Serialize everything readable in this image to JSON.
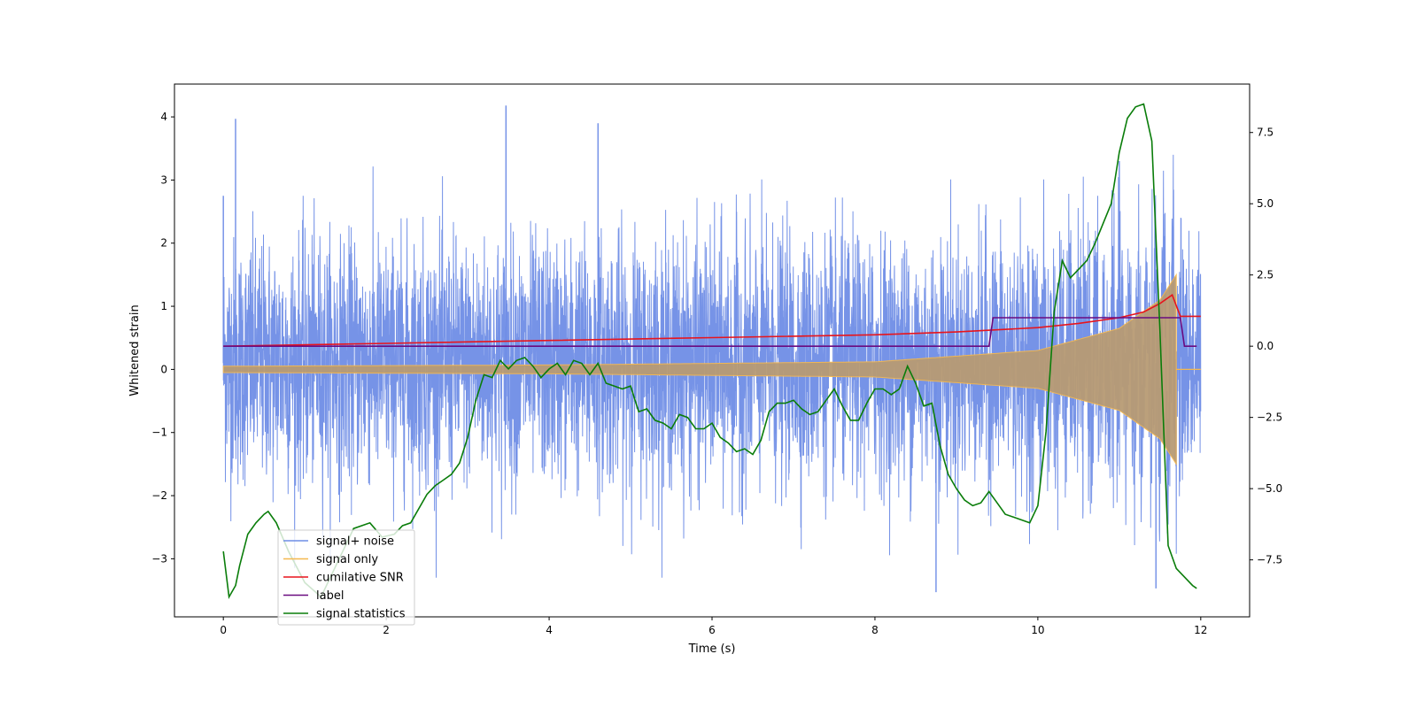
{
  "chart_data": {
    "type": "line",
    "title": "",
    "xlabel": "Time (s)",
    "ylabel": "Whitened strain",
    "ylabel_right": "",
    "xlim": [
      -0.6,
      12.6
    ],
    "ylim": [
      -3.92,
      4.52
    ],
    "ylim_right": [
      -9.5,
      9.2
    ],
    "x_ticks": [
      0,
      2,
      4,
      6,
      8,
      10,
      12
    ],
    "y_ticks": [
      -3,
      -2,
      -1,
      0,
      1,
      2,
      3,
      4
    ],
    "y_ticks_right": [
      -7.5,
      -5.0,
      -2.5,
      0.0,
      2.5,
      5.0,
      7.5
    ],
    "x_tick_labels": [
      "0",
      "2",
      "4",
      "6",
      "8",
      "10",
      "12"
    ],
    "y_tick_labels": [
      "−3",
      "−2",
      "−1",
      "0",
      "1",
      "2",
      "3",
      "4"
    ],
    "y_tick_labels_right": [
      "−7.5",
      "−5.0",
      "−2.5",
      "0.0",
      "2.5",
      "5.0",
      "7.5"
    ],
    "grid": false,
    "legend_position": "lower-left",
    "colors": {
      "noise": "#6f8de6",
      "signal": "#f5b84f",
      "snr": "#e8141c",
      "label": "#6a0a80",
      "statistics": "#0a7d0a"
    },
    "legend": [
      {
        "key": "noise",
        "label": "signal+ noise"
      },
      {
        "key": "signal",
        "label": "signal only"
      },
      {
        "key": "snr",
        "label": "cumilative SNR"
      },
      {
        "key": "label",
        "label": "label"
      },
      {
        "key": "statistics",
        "label": "signal statistics"
      }
    ],
    "series": [
      {
        "name": "signal+ noise",
        "axis": "left",
        "description_free": true,
        "x_range": [
          0,
          12
        ],
        "approx_upper_envelope": 2.8,
        "approx_lower_envelope": -2.6,
        "peaks": [
          [
            0.15,
            3.97
          ],
          [
            3.47,
            4.18
          ],
          [
            4.6,
            3.9
          ],
          [
            0.0,
            2.75
          ],
          [
            11.0,
            3.3
          ],
          [
            8.75,
            -3.53
          ],
          [
            11.45,
            -3.47
          ]
        ]
      },
      {
        "name": "signal only",
        "axis": "left",
        "x_range": [
          0,
          11.7
        ],
        "amplitude_points": [
          [
            0,
            0.05
          ],
          [
            4,
            0.07
          ],
          [
            8,
            0.12
          ],
          [
            10,
            0.3
          ],
          [
            11,
            0.65
          ],
          [
            11.5,
            1.1
          ],
          [
            11.7,
            1.5
          ]
        ]
      },
      {
        "name": "cumilative SNR",
        "axis": "right",
        "x": [
          0,
          2,
          4,
          6,
          8,
          9,
          10,
          10.5,
          11,
          11.3,
          11.5,
          11.65,
          11.75,
          12
        ],
        "y": [
          0.0,
          0.1,
          0.2,
          0.3,
          0.4,
          0.5,
          0.65,
          0.8,
          1.0,
          1.2,
          1.5,
          1.8,
          1.05,
          1.05
        ]
      },
      {
        "name": "label",
        "axis": "right",
        "x": [
          0,
          9.4,
          9.45,
          11.75,
          11.8,
          11.95
        ],
        "y": [
          0,
          0,
          1,
          1,
          0,
          0
        ]
      },
      {
        "name": "signal statistics",
        "axis": "right",
        "x": [
          0,
          0.07,
          0.15,
          0.2,
          0.3,
          0.4,
          0.5,
          0.55,
          0.65,
          0.8,
          1.0,
          1.2,
          1.4,
          1.6,
          1.8,
          1.95,
          2.1,
          2.2,
          2.3,
          2.5,
          2.6,
          2.7,
          2.8,
          2.9,
          3.0,
          3.1,
          3.2,
          3.3,
          3.4,
          3.5,
          3.6,
          3.7,
          3.8,
          3.9,
          4.0,
          4.1,
          4.2,
          4.3,
          4.4,
          4.5,
          4.6,
          4.7,
          4.8,
          4.9,
          5.0,
          5.1,
          5.2,
          5.3,
          5.4,
          5.5,
          5.6,
          5.7,
          5.8,
          5.9,
          6.0,
          6.1,
          6.2,
          6.3,
          6.4,
          6.5,
          6.6,
          6.7,
          6.8,
          6.9,
          7.0,
          7.1,
          7.2,
          7.3,
          7.4,
          7.5,
          7.6,
          7.7,
          7.8,
          7.9,
          8.0,
          8.1,
          8.2,
          8.3,
          8.4,
          8.5,
          8.6,
          8.7,
          8.8,
          8.9,
          9.0,
          9.1,
          9.2,
          9.3,
          9.4,
          9.5,
          9.6,
          9.7,
          9.8,
          9.9,
          10.0,
          10.1,
          10.2,
          10.3,
          10.4,
          10.5,
          10.6,
          10.7,
          10.8,
          10.9,
          11.0,
          11.1,
          11.2,
          11.3,
          11.4,
          11.5,
          11.6,
          11.7,
          11.8,
          11.9,
          11.95
        ],
        "y": [
          -7.2,
          -8.8,
          -8.4,
          -7.7,
          -6.6,
          -6.2,
          -5.9,
          -5.8,
          -6.2,
          -7.2,
          -8.3,
          -8.8,
          -7.6,
          -6.4,
          -6.2,
          -6.7,
          -6.6,
          -6.3,
          -6.2,
          -5.2,
          -4.9,
          -4.7,
          -4.5,
          -4.1,
          -3.2,
          -1.9,
          -1.0,
          -1.1,
          -0.5,
          -0.8,
          -0.5,
          -0.4,
          -0.7,
          -1.1,
          -0.8,
          -0.6,
          -1.0,
          -0.5,
          -0.6,
          -1.0,
          -0.6,
          -1.3,
          -1.4,
          -1.5,
          -1.4,
          -2.3,
          -2.2,
          -2.6,
          -2.7,
          -2.9,
          -2.4,
          -2.5,
          -2.9,
          -2.9,
          -2.7,
          -3.2,
          -3.4,
          -3.7,
          -3.6,
          -3.8,
          -3.3,
          -2.3,
          -2.0,
          -2.0,
          -1.9,
          -2.2,
          -2.4,
          -2.3,
          -1.9,
          -1.5,
          -2.1,
          -2.6,
          -2.6,
          -2.0,
          -1.5,
          -1.5,
          -1.7,
          -1.5,
          -0.7,
          -1.3,
          -2.1,
          -2.0,
          -3.5,
          -4.5,
          -5.0,
          -5.4,
          -5.6,
          -5.5,
          -5.1,
          -5.5,
          -5.9,
          -6.0,
          -6.1,
          -6.2,
          -5.6,
          -3.0,
          1.2,
          3.0,
          2.4,
          2.7,
          3.0,
          3.6,
          4.3,
          5.0,
          6.8,
          8.0,
          8.4,
          8.5,
          7.2,
          0.5,
          -7.0,
          -7.8,
          -8.1,
          -8.4,
          -8.5
        ]
      }
    ]
  }
}
